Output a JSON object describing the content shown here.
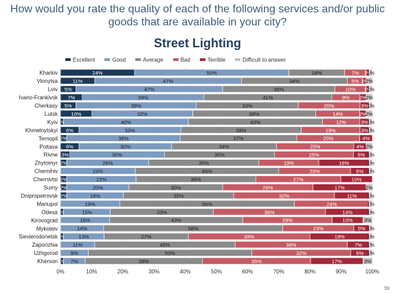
{
  "question": "How would you rate the quality of each of the following services and/or public goods that are available in your city?",
  "page_number": "59",
  "colors": {
    "Excellent": "#1b3a5a",
    "Good": "#7d9bc1",
    "Average": "#8a8a8a",
    "Bad": "#c55b64",
    "Terrible": "#a3283a",
    "Difficult to answer": "#c0c0c0"
  },
  "chart_data": {
    "type": "bar",
    "orientation": "horizontal-stacked-100",
    "title": "Street Lighting",
    "xlim": [
      0,
      100
    ],
    "x_ticks": [
      "0%",
      "10%",
      "20%",
      "30%",
      "40%",
      "50%",
      "60%",
      "70%",
      "80%",
      "90%",
      "100%"
    ],
    "legend_position": "top",
    "categories": [
      "Kharkiv",
      "Vinnytsa",
      "Lviv",
      "Ivano-Frankivsk",
      "Cherkasy",
      "Lutsk",
      "Kyiv",
      "Khmelnytskyi",
      "Ternopil",
      "Poltava",
      "Rivne",
      "Zhytomyr",
      "Chernihiv",
      "Chernivtsi",
      "Sumy",
      "Dnipropetrovsk",
      "Mariupol",
      "Odesa",
      "Kirovograd",
      "Mykolaiv",
      "Sievierodonetsk",
      "Zaporizhia",
      "Uzhgorod",
      "Kherson"
    ],
    "series": [
      {
        "name": "Excellent",
        "values": [
          24,
          11,
          5,
          7,
          5,
          10,
          1,
          6,
          2,
          6,
          3,
          2,
          0,
          2,
          2,
          2,
          0,
          1,
          0,
          0,
          1,
          0,
          0,
          1
        ]
      },
      {
        "name": "Good",
        "values": [
          50,
          47,
          47,
          39,
          39,
          32,
          40,
          33,
          36,
          30,
          30,
          26,
          24,
          22,
          20,
          18,
          19,
          15,
          16,
          14,
          13,
          11,
          9,
          7
        ]
      },
      {
        "name": "Average",
        "values": [
          18,
          34,
          36,
          41,
          33,
          39,
          43,
          39,
          37,
          34,
          35,
          35,
          46,
          38,
          30,
          35,
          56,
          33,
          43,
          58,
          27,
          45,
          53,
          38
        ]
      },
      {
        "name": "Bad",
        "values": [
          7,
          5,
          10,
          9,
          20,
          14,
          12,
          19,
          20,
          25,
          25,
          19,
          23,
          27,
          29,
          32,
          24,
          36,
          29,
          23,
          39,
          36,
          32,
          35
        ]
      },
      {
        "name": "Terrible",
        "values": [
          1,
          1,
          1,
          2,
          3,
          2,
          3,
          3,
          4,
          4,
          5,
          16,
          6,
          10,
          17,
          11,
          0,
          14,
          10,
          5,
          19,
          7,
          6,
          17
        ]
      },
      {
        "name": "Difficult to answer",
        "values": [
          1,
          2,
          1,
          2,
          1,
          2,
          1,
          1,
          0,
          2,
          1,
          1,
          1,
          0,
          2,
          1,
          1,
          1,
          3,
          1,
          1,
          1,
          1,
          3
        ]
      }
    ]
  }
}
